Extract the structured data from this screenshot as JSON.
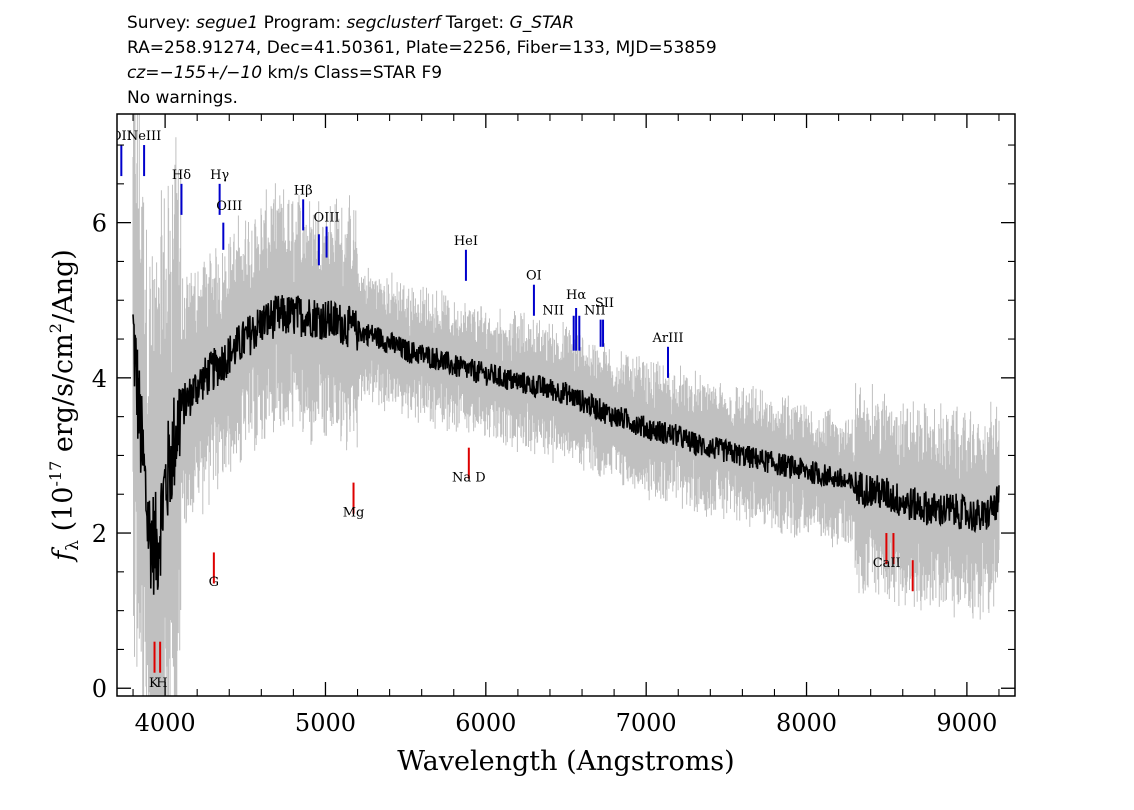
{
  "header": {
    "line1": {
      "survey_label": "Survey: ",
      "survey": "segue1",
      "program_label": " Program: ",
      "program": "segclusterf",
      "target_label": " Target: ",
      "target": "G_STAR"
    },
    "line2": "RA=258.91274, Dec=41.50361, Plate=2256, Fiber=133, MJD=53859",
    "line3": {
      "cz": "cz=−155+/−10",
      "rest": " km/s Class=STAR F9"
    },
    "line4": "No warnings."
  },
  "chart_data": {
    "type": "line",
    "xlabel": "Wavelength (Angstroms)",
    "ylabel_prefix": "f",
    "ylabel_sub": "λ",
    "ylabel_main": " (10",
    "ylabel_exp": "-17",
    "ylabel_rest": " erg/s/cm",
    "ylabel_exp2": "2",
    "ylabel_end": "/Ang)",
    "xlim": [
      3700,
      9300
    ],
    "ylim": [
      -0.1,
      7.4
    ],
    "x_ticks": [
      4000,
      5000,
      6000,
      7000,
      8000,
      9000
    ],
    "x_tick_labels": [
      "4000",
      "5000",
      "6000",
      "7000",
      "8000",
      "9000"
    ],
    "y_ticks": [
      0,
      2,
      4,
      6
    ],
    "y_tick_labels": [
      "0",
      "2",
      "4",
      "6"
    ],
    "grid": false,
    "series": [
      {
        "role": "flux",
        "color": "#000000",
        "x": [
          3800,
          3850,
          3900,
          3950,
          4000,
          4100,
          4200,
          4300,
          4400,
          4500,
          4600,
          4700,
          4800,
          4900,
          5000,
          5100,
          5200,
          5300,
          5400,
          5500,
          5600,
          5700,
          5800,
          5900,
          6000,
          6100,
          6200,
          6300,
          6400,
          6500,
          6600,
          6700,
          6800,
          6900,
          7000,
          7100,
          7200,
          7300,
          7400,
          7500,
          7600,
          7700,
          7800,
          7900,
          8000,
          8100,
          8200,
          8300,
          8400,
          8500,
          8600,
          8700,
          8800,
          8900,
          9000,
          9100,
          9200
        ],
        "y": [
          4.6,
          3.2,
          2.0,
          1.8,
          2.6,
          3.6,
          3.9,
          4.1,
          4.3,
          4.5,
          4.7,
          4.8,
          4.8,
          4.8,
          4.75,
          4.7,
          4.6,
          4.55,
          4.45,
          4.35,
          4.3,
          4.25,
          4.15,
          4.1,
          4.05,
          4.0,
          3.95,
          3.9,
          3.85,
          3.8,
          3.7,
          3.6,
          3.5,
          3.45,
          3.35,
          3.3,
          3.25,
          3.15,
          3.1,
          3.05,
          3.0,
          2.95,
          2.9,
          2.85,
          2.8,
          2.75,
          2.7,
          2.6,
          2.55,
          2.5,
          2.4,
          2.35,
          2.3,
          2.3,
          2.25,
          2.2,
          2.4
        ]
      },
      {
        "role": "error",
        "color": "#c0c0c0"
      }
    ],
    "emission_lines": [
      {
        "label": "OII",
        "wavelength": 3727,
        "top": 7.0,
        "bottom": 6.6
      },
      {
        "label": "NeIII",
        "wavelength": 3869,
        "top": 7.0,
        "bottom": 6.6
      },
      {
        "label": "Hδ",
        "wavelength": 4102,
        "top": 6.5,
        "bottom": 6.1
      },
      {
        "label": "Hγ",
        "wavelength": 4340,
        "top": 6.5,
        "bottom": 6.1
      },
      {
        "label": "OIII",
        "wavelength": 4363,
        "top": 6.0,
        "bottom": 5.65
      },
      {
        "label": "Hβ",
        "wavelength": 4861,
        "top": 6.3,
        "bottom": 5.9
      },
      {
        "label": "OIII",
        "wavelength": 4959,
        "top": 5.85,
        "bottom": 5.45
      },
      {
        "label": "OIII",
        "wavelength": 5007,
        "top": 5.95,
        "bottom": 5.55
      },
      {
        "label": "HeI",
        "wavelength": 5876,
        "top": 5.65,
        "bottom": 5.25
      },
      {
        "label": "OI",
        "wavelength": 6300,
        "top": 5.2,
        "bottom": 4.8
      },
      {
        "label": "NII",
        "wavelength": 6548,
        "top": 4.8,
        "bottom": 4.35
      },
      {
        "label": "Hα",
        "wavelength": 6563,
        "top": 4.9,
        "bottom": 4.35
      },
      {
        "label": "NII",
        "wavelength": 6583,
        "top": 4.8,
        "bottom": 4.35
      },
      {
        "label": "SII",
        "wavelength": 6716,
        "top": 4.75,
        "bottom": 4.4
      },
      {
        "label": "SII",
        "wavelength": 6731,
        "top": 4.75,
        "bottom": 4.4
      },
      {
        "label": "ArIII",
        "wavelength": 7136,
        "top": 4.4,
        "bottom": 4.0
      }
    ],
    "absorption_lines": [
      {
        "label": "K",
        "wavelength": 3934,
        "top": 0.6,
        "bottom": 0.2
      },
      {
        "label": "H",
        "wavelength": 3969,
        "top": 0.6,
        "bottom": 0.2
      },
      {
        "label": "G",
        "wavelength": 4304,
        "top": 1.75,
        "bottom": 1.35
      },
      {
        "label": "Mg",
        "wavelength": 5175,
        "top": 2.65,
        "bottom": 2.25
      },
      {
        "label": "Na",
        "wavelength": 5894,
        "top": 3.1,
        "bottom": 2.7
      },
      {
        "label": "CaII",
        "wavelength": 8498,
        "top": 2.0,
        "bottom": 1.6
      },
      {
        "label": "CaII",
        "wavelength": 8542,
        "top": 2.0,
        "bottom": 1.6
      },
      {
        "label": "CaII",
        "wavelength": 8662,
        "top": 1.65,
        "bottom": 1.25
      }
    ],
    "line_labels": [
      {
        "text": "OII",
        "wavelength": 3727,
        "y": 7.0
      },
      {
        "text": "NeIII",
        "wavelength": 3869,
        "y": 7.0
      },
      {
        "text": "Hδ",
        "wavelength": 4102,
        "y": 6.5
      },
      {
        "text": "Hγ",
        "wavelength": 4340,
        "y": 6.5
      },
      {
        "text": "OIII",
        "wavelength": 4400,
        "y": 6.1
      },
      {
        "text": "Hβ",
        "wavelength": 4861,
        "y": 6.3
      },
      {
        "text": "OIII",
        "wavelength": 5007,
        "y": 5.95
      },
      {
        "text": "HeI",
        "wavelength": 5876,
        "y": 5.65
      },
      {
        "text": "OI",
        "wavelength": 6300,
        "y": 5.2
      },
      {
        "text": "NII",
        "wavelength": 6420,
        "y": 4.75
      },
      {
        "text": "Hα",
        "wavelength": 6563,
        "y": 4.95
      },
      {
        "text": "NII",
        "wavelength": 6680,
        "y": 4.75
      },
      {
        "text": "SII",
        "wavelength": 6740,
        "y": 4.85
      },
      {
        "text": "ArIII",
        "wavelength": 7136,
        "y": 4.4
      },
      {
        "text": "K",
        "wavelength": 3930,
        "y": -0.05
      },
      {
        "text": "H",
        "wavelength": 3980,
        "y": -0.05
      },
      {
        "text": "G",
        "wavelength": 4304,
        "y": 1.25
      },
      {
        "text": "Mg",
        "wavelength": 5175,
        "y": 2.15
      },
      {
        "text": "Na  D",
        "wavelength": 5894,
        "y": 2.6
      },
      {
        "text": "CaII",
        "wavelength": 8500,
        "y": 1.5
      }
    ],
    "colors": {
      "flux": "#000000",
      "error": "#c0c0c0",
      "emission": "#0000cc",
      "absorption": "#dd0000"
    }
  }
}
